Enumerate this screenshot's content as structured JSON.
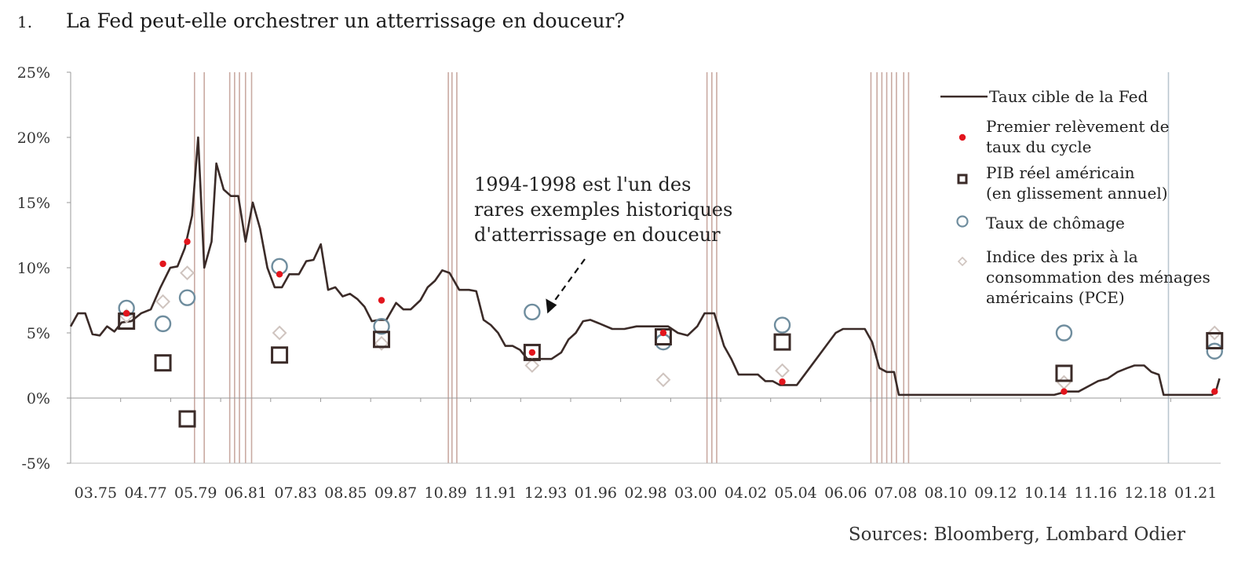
{
  "heading": {
    "number": "1.",
    "text": "La Fed peut-elle orchestrer un atterrissage en douceur?"
  },
  "source": "Sources: Bloomberg, Lombard Odier",
  "colors": {
    "fed": "#3b2b28",
    "hike": "#e2151d",
    "gdp": "#3b2b28",
    "unemp": "#6f8d9e",
    "pce": "#cfc4bf",
    "recession": "#c9aaa2",
    "axis": "#999999"
  },
  "chart_data": {
    "type": "line",
    "xlabel": "",
    "ylabel": "",
    "ylim": [
      -5,
      25
    ],
    "yticks": [
      "-5%",
      "0%",
      "5%",
      "10%",
      "15%",
      "20%",
      "25%"
    ],
    "xticks": [
      "03.75",
      "04.77",
      "05.79",
      "06.81",
      "07.83",
      "08.85",
      "09.87",
      "10.89",
      "11.91",
      "12.93",
      "01.96",
      "02.98",
      "03.00",
      "04.02",
      "05.04",
      "06.06",
      "07.08",
      "08.10",
      "09.12",
      "10.14",
      "11.16",
      "12.18",
      "01.21"
    ],
    "legend": [
      {
        "key": "fed",
        "label": [
          "Taux cible de la Fed"
        ]
      },
      {
        "key": "hike",
        "label": [
          "Premier relèvement de",
          "taux du cycle"
        ]
      },
      {
        "key": "gdp",
        "label": [
          "PIB réel américain",
          "(en glissement annuel)"
        ]
      },
      {
        "key": "unemp",
        "label": [
          "Taux de chômage"
        ]
      },
      {
        "key": "pce",
        "label": [
          "Indice des prix à la",
          "consommation des ménages",
          "américains (PCE)"
        ]
      }
    ],
    "annotation": {
      "lines": [
        "1994-1998 est l'un des",
        "rares exemples historiques",
        "d'atterrissage en douceur"
      ],
      "target": [
        1994.5,
        6.0
      ]
    },
    "recessions": [
      1980.1,
      1980.5,
      1981.55,
      1981.75,
      1981.95,
      1982.2,
      1982.45,
      1990.55,
      1990.7,
      1990.9,
      2001.2,
      2001.4,
      2001.6,
      2007.95,
      2008.2,
      2008.4,
      2008.6,
      2008.8,
      2009.0,
      2009.3,
      2009.5
    ],
    "vline_2020": 2020.2,
    "series": [
      {
        "name": "Taux cible de la Fed",
        "points": [
          [
            1975.0,
            5.5
          ],
          [
            1975.3,
            6.5
          ],
          [
            1975.6,
            6.5
          ],
          [
            1975.9,
            4.9
          ],
          [
            1976.2,
            4.8
          ],
          [
            1976.5,
            5.5
          ],
          [
            1976.8,
            5.1
          ],
          [
            1977.1,
            5.8
          ],
          [
            1977.5,
            5.9
          ],
          [
            1977.9,
            6.5
          ],
          [
            1978.3,
            6.8
          ],
          [
            1978.7,
            8.5
          ],
          [
            1979.1,
            10.0
          ],
          [
            1979.4,
            10.1
          ],
          [
            1979.7,
            11.5
          ],
          [
            1980.0,
            14.0
          ],
          [
            1980.25,
            20.0
          ],
          [
            1980.5,
            10.0
          ],
          [
            1980.8,
            12.0
          ],
          [
            1981.0,
            18.0
          ],
          [
            1981.3,
            16.0
          ],
          [
            1981.6,
            15.5
          ],
          [
            1981.9,
            15.5
          ],
          [
            1982.2,
            12.0
          ],
          [
            1982.5,
            15.0
          ],
          [
            1982.8,
            13.0
          ],
          [
            1983.1,
            10.0
          ],
          [
            1983.4,
            8.5
          ],
          [
            1983.7,
            8.5
          ],
          [
            1984.0,
            9.5
          ],
          [
            1984.4,
            9.5
          ],
          [
            1984.7,
            10.5
          ],
          [
            1985.0,
            10.6
          ],
          [
            1985.3,
            11.8
          ],
          [
            1985.6,
            8.3
          ],
          [
            1985.9,
            8.5
          ],
          [
            1986.2,
            7.8
          ],
          [
            1986.5,
            8.0
          ],
          [
            1986.8,
            7.6
          ],
          [
            1987.1,
            7.0
          ],
          [
            1987.4,
            5.9
          ],
          [
            1987.7,
            6.0
          ],
          [
            1988.0,
            6.0
          ],
          [
            1988.4,
            7.3
          ],
          [
            1988.7,
            6.8
          ],
          [
            1989.0,
            6.8
          ],
          [
            1989.4,
            7.5
          ],
          [
            1989.7,
            8.5
          ],
          [
            1990.0,
            9.0
          ],
          [
            1990.3,
            9.8
          ],
          [
            1990.6,
            9.6
          ],
          [
            1991.0,
            8.3
          ],
          [
            1991.4,
            8.3
          ],
          [
            1991.7,
            8.2
          ],
          [
            1992.0,
            6.0
          ],
          [
            1992.3,
            5.6
          ],
          [
            1992.6,
            5.0
          ],
          [
            1992.9,
            4.0
          ],
          [
            1993.2,
            4.0
          ],
          [
            1993.5,
            3.7
          ],
          [
            1993.8,
            3.0
          ],
          [
            1994.3,
            3.0
          ],
          [
            1994.8,
            3.0
          ],
          [
            1995.2,
            3.5
          ],
          [
            1995.5,
            4.5
          ],
          [
            1995.8,
            5.0
          ],
          [
            1996.1,
            5.9
          ],
          [
            1996.4,
            6.0
          ],
          [
            1996.8,
            5.7
          ],
          [
            1997.3,
            5.3
          ],
          [
            1997.8,
            5.3
          ],
          [
            1998.3,
            5.5
          ],
          [
            1998.8,
            5.5
          ],
          [
            1999.2,
            5.5
          ],
          [
            1999.6,
            5.5
          ],
          [
            2000.0,
            5.0
          ],
          [
            2000.4,
            4.8
          ],
          [
            2000.8,
            5.5
          ],
          [
            2001.1,
            6.5
          ],
          [
            2001.5,
            6.5
          ],
          [
            2001.9,
            4.0
          ],
          [
            2002.2,
            3.0
          ],
          [
            2002.5,
            1.8
          ],
          [
            2002.9,
            1.8
          ],
          [
            2003.3,
            1.8
          ],
          [
            2003.6,
            1.3
          ],
          [
            2003.9,
            1.3
          ],
          [
            2004.2,
            1.0
          ],
          [
            2004.6,
            1.0
          ],
          [
            2004.9,
            1.0
          ],
          [
            2005.3,
            2.0
          ],
          [
            2005.7,
            3.0
          ],
          [
            2006.1,
            4.0
          ],
          [
            2006.5,
            5.0
          ],
          [
            2006.8,
            5.3
          ],
          [
            2007.3,
            5.3
          ],
          [
            2007.7,
            5.3
          ],
          [
            2008.0,
            4.3
          ],
          [
            2008.3,
            2.3
          ],
          [
            2008.6,
            2.0
          ],
          [
            2008.9,
            2.0
          ],
          [
            2009.1,
            0.25
          ],
          [
            2010.0,
            0.25
          ],
          [
            2012.0,
            0.25
          ],
          [
            2014.0,
            0.25
          ],
          [
            2015.5,
            0.25
          ],
          [
            2016.0,
            0.5
          ],
          [
            2016.5,
            0.5
          ],
          [
            2017.0,
            1.0
          ],
          [
            2017.3,
            1.3
          ],
          [
            2017.7,
            1.5
          ],
          [
            2018.1,
            2.0
          ],
          [
            2018.5,
            2.3
          ],
          [
            2018.8,
            2.5
          ],
          [
            2019.2,
            2.5
          ],
          [
            2019.5,
            2.0
          ],
          [
            2019.8,
            1.8
          ],
          [
            2020.0,
            0.25
          ],
          [
            2021.0,
            0.25
          ],
          [
            2022.0,
            0.25
          ],
          [
            2022.15,
            0.5
          ],
          [
            2022.3,
            1.5
          ]
        ]
      },
      {
        "name": "Premier relèvement de taux du cycle",
        "points": [
          [
            1977.3,
            6.5
          ],
          [
            1978.8,
            10.3
          ],
          [
            1979.8,
            12.0
          ],
          [
            1983.6,
            9.5
          ],
          [
            1987.8,
            7.5
          ],
          [
            1994.0,
            3.5
          ],
          [
            1999.4,
            5.0
          ],
          [
            2004.3,
            1.25
          ],
          [
            2015.9,
            0.5
          ],
          [
            2022.1,
            0.5
          ]
        ]
      },
      {
        "name": "PIB réel américain (en glissement annuel)",
        "points": [
          [
            1977.3,
            5.9
          ],
          [
            1978.8,
            2.7
          ],
          [
            1979.8,
            -1.6
          ],
          [
            1983.6,
            3.3
          ],
          [
            1987.8,
            4.5
          ],
          [
            1994.0,
            3.5
          ],
          [
            1999.4,
            4.7
          ],
          [
            2004.3,
            4.3
          ],
          [
            2015.9,
            1.9
          ],
          [
            2022.1,
            4.4
          ]
        ]
      },
      {
        "name": "Taux de chômage",
        "points": [
          [
            1977.3,
            6.9
          ],
          [
            1978.8,
            5.7
          ],
          [
            1979.8,
            7.7
          ],
          [
            1983.6,
            10.1
          ],
          [
            1987.8,
            5.5
          ],
          [
            1994.0,
            6.6
          ],
          [
            1999.4,
            4.3
          ],
          [
            2004.3,
            5.6
          ],
          [
            2015.9,
            5.0
          ],
          [
            2022.1,
            3.6
          ]
        ]
      },
      {
        "name": "Indice des prix à la consommation des ménages américains (PCE)",
        "points": [
          [
            1977.3,
            6.3
          ],
          [
            1978.8,
            7.4
          ],
          [
            1979.8,
            9.6
          ],
          [
            1983.6,
            5.0
          ],
          [
            1987.8,
            4.2
          ],
          [
            1994.0,
            2.5
          ],
          [
            1999.4,
            1.4
          ],
          [
            2004.3,
            2.1
          ],
          [
            2015.9,
            1.2
          ],
          [
            2022.1,
            5.0
          ]
        ]
      }
    ]
  }
}
